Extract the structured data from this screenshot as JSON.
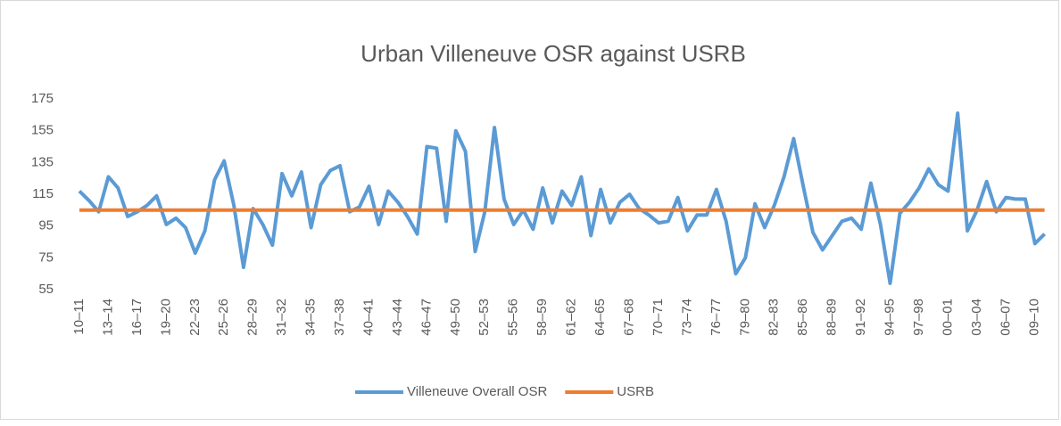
{
  "chart_data": {
    "type": "line",
    "title": "Urban Villeneuve OSR against USRB",
    "categories": [
      "10–11",
      null,
      null,
      "13–14",
      null,
      null,
      "16–17",
      null,
      null,
      "19–20",
      null,
      null,
      "22–23",
      null,
      null,
      "25–26",
      null,
      null,
      "28–29",
      null,
      null,
      "31–32",
      null,
      null,
      "34–35",
      null,
      null,
      "37–38",
      null,
      null,
      "40–41",
      null,
      null,
      "43–44",
      null,
      null,
      "46–47",
      null,
      null,
      "49–50",
      null,
      null,
      "52–53",
      null,
      null,
      "55–56",
      null,
      null,
      "58–59",
      null,
      null,
      "61–62",
      null,
      null,
      "64–65",
      null,
      null,
      "67–68",
      null,
      null,
      "70–71",
      null,
      null,
      "73–74",
      null,
      null,
      "76–77",
      null,
      null,
      "79–80",
      null,
      null,
      "82–83",
      null,
      null,
      "85–86",
      null,
      null,
      "88–89",
      null,
      null,
      "91–92",
      null,
      null,
      "94–95",
      null,
      null,
      "97–98",
      null,
      null,
      "00–01",
      null,
      null,
      "03–04",
      null,
      null,
      "06–07",
      null,
      null,
      "09–10",
      null
    ],
    "series": [
      {
        "name": "Villeneuve Overall OSR",
        "color": "#5b9bd5",
        "values": [
          117,
          111,
          104,
          126,
          119,
          101,
          104,
          108,
          114,
          96,
          100,
          94,
          78,
          92,
          124,
          136,
          108,
          69,
          106,
          96,
          83,
          128,
          114,
          129,
          94,
          121,
          130,
          133,
          104,
          107,
          120,
          96,
          117,
          110,
          101,
          90,
          145,
          144,
          98,
          155,
          142,
          79,
          104,
          157,
          112,
          96,
          105,
          93,
          119,
          97,
          117,
          108,
          126,
          89,
          118,
          97,
          110,
          115,
          106,
          102,
          97,
          98,
          113,
          92,
          102,
          102,
          118,
          98,
          65,
          75,
          109,
          94,
          108,
          126,
          150,
          120,
          91,
          80,
          89,
          98,
          100,
          93,
          122,
          96,
          59,
          103,
          110,
          119,
          131,
          121,
          117,
          166,
          92,
          105,
          123,
          104,
          113,
          112,
          112,
          84,
          90
        ]
      },
      {
        "name": "USRB",
        "color": "#ed7d31",
        "values": [
          105,
          105,
          105,
          105,
          105,
          105,
          105,
          105,
          105,
          105,
          105,
          105,
          105,
          105,
          105,
          105,
          105,
          105,
          105,
          105,
          105,
          105,
          105,
          105,
          105,
          105,
          105,
          105,
          105,
          105,
          105,
          105,
          105,
          105,
          105,
          105,
          105,
          105,
          105,
          105,
          105,
          105,
          105,
          105,
          105,
          105,
          105,
          105,
          105,
          105,
          105,
          105,
          105,
          105,
          105,
          105,
          105,
          105,
          105,
          105,
          105,
          105,
          105,
          105,
          105,
          105,
          105,
          105,
          105,
          105,
          105,
          105,
          105,
          105,
          105,
          105,
          105,
          105,
          105,
          105,
          105,
          105,
          105,
          105,
          105,
          105,
          105,
          105,
          105,
          105,
          105,
          105,
          105,
          105,
          105,
          105,
          105,
          105,
          105,
          105,
          105
        ]
      }
    ],
    "ylim": [
      55,
      175
    ],
    "yticks": [
      55,
      75,
      95,
      115,
      135,
      155,
      175
    ],
    "grid": false,
    "legend": "bottom"
  }
}
